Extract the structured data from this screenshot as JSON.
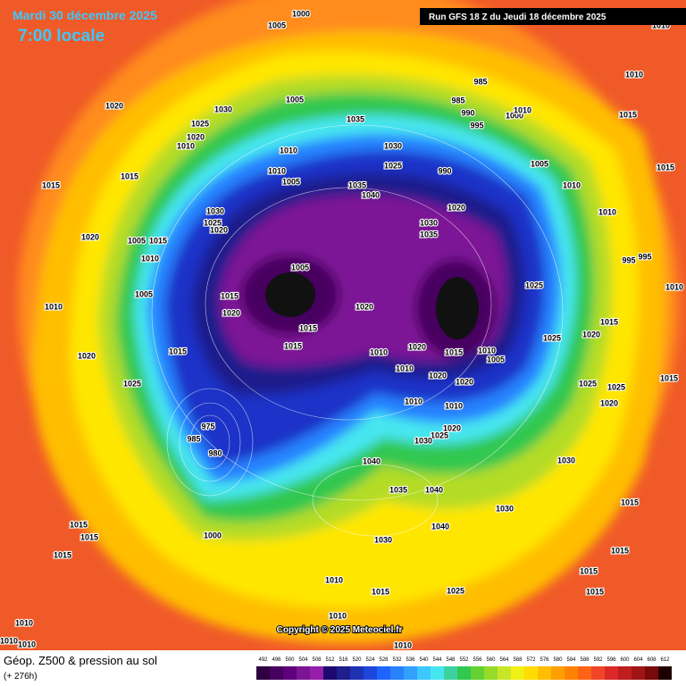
{
  "header": {
    "date": "Mardi 30 décembre 2025",
    "time": "7:00 locale",
    "run": "Run GFS 18 Z du Jeudi 18 décembre 2025"
  },
  "copyright": "Copyright © 2025 Meteociel.fr",
  "footer": {
    "title": "Géop. Z500 & pression au sol",
    "lead": "(+ 276h)"
  },
  "scale": {
    "values": [
      492,
      496,
      500,
      504,
      508,
      512,
      516,
      520,
      524,
      528,
      532,
      536,
      540,
      544,
      548,
      552,
      556,
      560,
      564,
      568,
      572,
      576,
      580,
      584,
      588,
      592,
      596,
      600,
      604,
      608,
      612
    ],
    "colors": [
      "#2d0041",
      "#46005f",
      "#5f007d",
      "#7d1496",
      "#961eaa",
      "#1e0a6e",
      "#1e1e8c",
      "#1e32b4",
      "#1e46dc",
      "#1e64ff",
      "#2882ff",
      "#32a0ff",
      "#3cc8ff",
      "#46e6f0",
      "#3cd2a0",
      "#32c850",
      "#64d232",
      "#96dc28",
      "#c8e628",
      "#f0f014",
      "#ffdc00",
      "#ffbe00",
      "#ffa000",
      "#ff8200",
      "#ff6414",
      "#f04628",
      "#dc2828",
      "#be1e1e",
      "#a01414",
      "#780a0a",
      "#1e0000"
    ]
  },
  "pressure_labels": [
    1000,
    1005,
    1020,
    1030,
    1025,
    1020,
    1010,
    1015,
    1015,
    1020,
    1030,
    1025,
    1020,
    1005,
    1035,
    1030,
    1025,
    1035,
    1040,
    985,
    985,
    990,
    995,
    1000,
    1010,
    1005,
    1010,
    990,
    1020,
    1030,
    1035,
    1010,
    1015,
    1015,
    1010,
    995,
    995,
    1010,
    1025,
    1015,
    1020,
    1025,
    1025,
    1025,
    1020,
    1015,
    1010,
    1010,
    1005,
    1005,
    1015,
    1020,
    1020,
    1015,
    1015,
    1010,
    1020,
    1010,
    1015,
    1010,
    1005,
    1020,
    1020,
    1010,
    1010,
    1020,
    1025,
    1030,
    1010,
    1005,
    1010,
    1015,
    1020,
    1025,
    975,
    985,
    980,
    1000,
    1040,
    1035,
    1040,
    1030,
    1030,
    1040,
    1030,
    1015,
    1015,
    1015,
    1010,
    1015,
    1025,
    1015,
    1015,
    1015,
    1015,
    1010,
    1010,
    1010,
    1010,
    1010,
    1005,
    1015,
    1010
  ]
}
